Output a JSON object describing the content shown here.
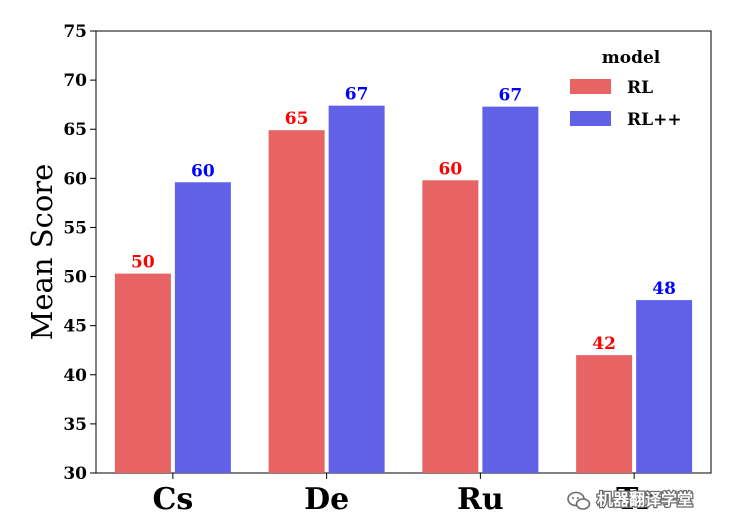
{
  "chart_data": {
    "type": "bar",
    "categories": [
      "Cs",
      "De",
      "Ru",
      "Tr"
    ],
    "series": [
      {
        "name": "RL",
        "values": [
          50.3,
          64.9,
          59.8,
          42.0
        ],
        "labels": [
          "50",
          "65",
          "60",
          "42"
        ],
        "color": "#e86363"
      },
      {
        "name": "RL++",
        "values": [
          59.6,
          67.4,
          67.3,
          47.6
        ],
        "labels": [
          "60",
          "67",
          "67",
          "48"
        ],
        "color": "#6161e8"
      }
    ],
    "label_colors": [
      "#ff0000",
      "#0000ff"
    ],
    "title": "",
    "xlabel": "",
    "ylabel": "Mean Score",
    "ylim": [
      30,
      75
    ],
    "yticks": [
      30,
      35,
      40,
      45,
      50,
      55,
      60,
      65,
      70,
      75
    ],
    "grid": false,
    "legend": {
      "title": "model",
      "position": "top-right"
    }
  },
  "watermark": {
    "text": "机器翻译学堂",
    "icon": "wechat-icon"
  }
}
